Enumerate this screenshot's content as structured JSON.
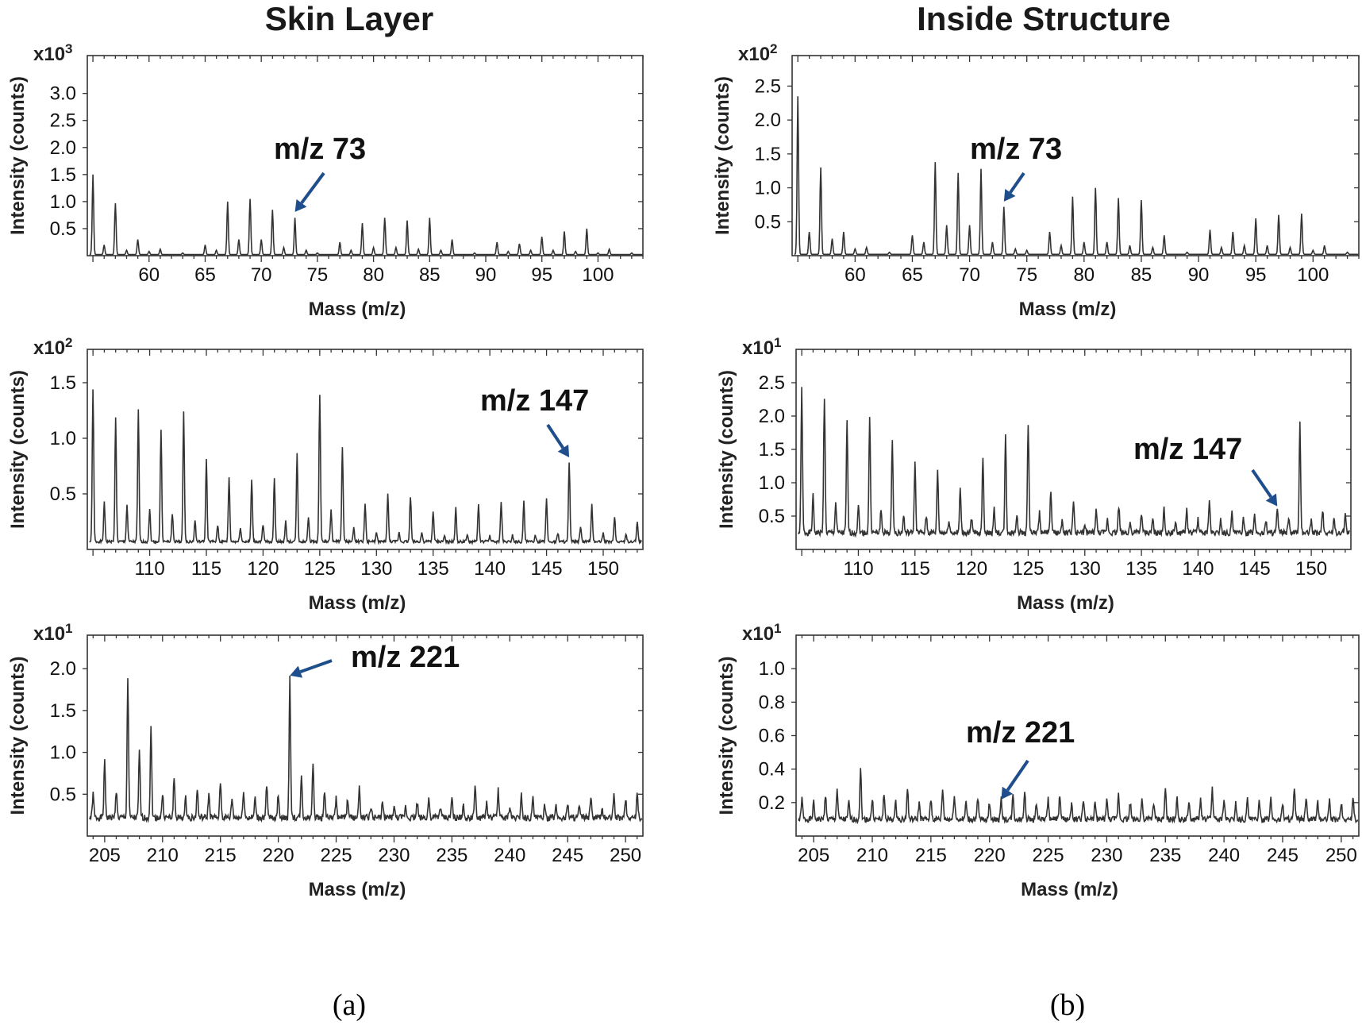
{
  "titles": {
    "left": "Skin Layer",
    "right": "Inside Structure"
  },
  "captions": {
    "left": "(a)",
    "right": "(b)"
  },
  "colors": {
    "arrow": "#1f4e8c",
    "line": "#333333"
  },
  "chart_data": [
    {
      "id": "a1",
      "type": "line",
      "column": "Skin Layer",
      "xlabel": "Mass (m/z)",
      "ylabel": "Intensity (counts)",
      "scale_base": "x10",
      "scale_exp": "3",
      "xlim": [
        54.5,
        104
      ],
      "ylim": [
        0,
        3.7
      ],
      "xticks": [
        60,
        65,
        70,
        75,
        80,
        85,
        90,
        95,
        100
      ],
      "yticks": [
        "0.5",
        "1.0",
        "1.5",
        "2.0",
        "2.5",
        "3.0"
      ],
      "baseline": 0.02,
      "annotation": {
        "text": "m/z 73",
        "x": 73,
        "y": 0.75
      },
      "peaks": [
        [
          55,
          1.5
        ],
        [
          56,
          0.2
        ],
        [
          57,
          0.97
        ],
        [
          58,
          0.1
        ],
        [
          59,
          0.3
        ],
        [
          60,
          0.08
        ],
        [
          61,
          0.12
        ],
        [
          63,
          0.05
        ],
        [
          65,
          0.2
        ],
        [
          66,
          0.1
        ],
        [
          67,
          1.0
        ],
        [
          68,
          0.3
        ],
        [
          69,
          1.05
        ],
        [
          70,
          0.3
        ],
        [
          71,
          0.85
        ],
        [
          72,
          0.15
        ],
        [
          73,
          0.7
        ],
        [
          74,
          0.1
        ],
        [
          75,
          0.05
        ],
        [
          77,
          0.25
        ],
        [
          78,
          0.1
        ],
        [
          79,
          0.6
        ],
        [
          80,
          0.15
        ],
        [
          81,
          0.7
        ],
        [
          82,
          0.15
        ],
        [
          83,
          0.65
        ],
        [
          84,
          0.12
        ],
        [
          85,
          0.7
        ],
        [
          86,
          0.1
        ],
        [
          87,
          0.3
        ],
        [
          89,
          0.05
        ],
        [
          91,
          0.25
        ],
        [
          92,
          0.08
        ],
        [
          93,
          0.22
        ],
        [
          94,
          0.1
        ],
        [
          95,
          0.35
        ],
        [
          96,
          0.1
        ],
        [
          97,
          0.45
        ],
        [
          98,
          0.08
        ],
        [
          99,
          0.5
        ],
        [
          100,
          0.05
        ],
        [
          101,
          0.12
        ],
        [
          103,
          0.05
        ]
      ]
    },
    {
      "id": "a2",
      "type": "line",
      "column": "Skin Layer",
      "xlabel": "Mass (m/z)",
      "ylabel": "Intensity (counts)",
      "scale_base": "x10",
      "scale_exp": "2",
      "xlim": [
        104.5,
        153.5
      ],
      "ylim": [
        0,
        1.8
      ],
      "xticks": [
        110,
        115,
        120,
        125,
        130,
        135,
        140,
        145,
        150
      ],
      "yticks": [
        "0.5",
        "1.0",
        "1.5"
      ],
      "baseline": 0.07,
      "annotation": {
        "text": "m/z 147",
        "x": 147,
        "y": 0.8
      },
      "peaks": [
        [
          105,
          1.43
        ],
        [
          106,
          0.42
        ],
        [
          107,
          1.2
        ],
        [
          108,
          0.4
        ],
        [
          109,
          1.25
        ],
        [
          110,
          0.36
        ],
        [
          111,
          1.08
        ],
        [
          112,
          0.32
        ],
        [
          113,
          1.23
        ],
        [
          114,
          0.26
        ],
        [
          115,
          0.81
        ],
        [
          116,
          0.22
        ],
        [
          117,
          0.65
        ],
        [
          118,
          0.2
        ],
        [
          119,
          0.62
        ],
        [
          120,
          0.22
        ],
        [
          121,
          0.65
        ],
        [
          122,
          0.25
        ],
        [
          123,
          0.86
        ],
        [
          124,
          0.3
        ],
        [
          125,
          1.4
        ],
        [
          126,
          0.35
        ],
        [
          127,
          0.93
        ],
        [
          128,
          0.2
        ],
        [
          129,
          0.42
        ],
        [
          130,
          0.15
        ],
        [
          131,
          0.5
        ],
        [
          132,
          0.15
        ],
        [
          133,
          0.48
        ],
        [
          134,
          0.15
        ],
        [
          135,
          0.35
        ],
        [
          136,
          0.12
        ],
        [
          137,
          0.37
        ],
        [
          138,
          0.13
        ],
        [
          139,
          0.4
        ],
        [
          140,
          0.12
        ],
        [
          141,
          0.43
        ],
        [
          142,
          0.13
        ],
        [
          143,
          0.43
        ],
        [
          144,
          0.12
        ],
        [
          145,
          0.45
        ],
        [
          146,
          0.15
        ],
        [
          147,
          0.78
        ],
        [
          148,
          0.2
        ],
        [
          149,
          0.4
        ],
        [
          150,
          0.15
        ],
        [
          151,
          0.3
        ],
        [
          152,
          0.13
        ],
        [
          153,
          0.25
        ]
      ]
    },
    {
      "id": "a3",
      "type": "line",
      "column": "Skin Layer",
      "xlabel": "Mass (m/z)",
      "ylabel": "Intensity (counts)",
      "scale_base": "x10",
      "scale_exp": "1",
      "xlim": [
        203.5,
        251.5
      ],
      "ylim": [
        0,
        2.4
      ],
      "xticks": [
        205,
        210,
        215,
        220,
        225,
        230,
        235,
        240,
        245,
        250
      ],
      "yticks": [
        "0.5",
        "1.0",
        "1.5",
        "2.0"
      ],
      "baseline": 0.22,
      "annotation": {
        "text": "m/z 221",
        "x": 221,
        "y": 1.88
      },
      "peaks": [
        [
          204,
          0.5
        ],
        [
          205,
          0.88
        ],
        [
          206,
          0.55
        ],
        [
          207,
          1.88
        ],
        [
          208,
          1.0
        ],
        [
          209,
          1.3
        ],
        [
          210,
          0.5
        ],
        [
          211,
          0.7
        ],
        [
          212,
          0.45
        ],
        [
          213,
          0.55
        ],
        [
          214,
          0.5
        ],
        [
          215,
          0.65
        ],
        [
          216,
          0.45
        ],
        [
          217,
          0.55
        ],
        [
          218,
          0.45
        ],
        [
          219,
          0.6
        ],
        [
          220,
          0.5
        ],
        [
          221,
          1.88
        ],
        [
          222,
          0.7
        ],
        [
          223,
          0.9
        ],
        [
          224,
          0.55
        ],
        [
          225,
          0.45
        ],
        [
          226,
          0.45
        ],
        [
          227,
          0.6
        ],
        [
          228,
          0.35
        ],
        [
          229,
          0.4
        ],
        [
          230,
          0.35
        ],
        [
          231,
          0.35
        ],
        [
          232,
          0.4
        ],
        [
          233,
          0.45
        ],
        [
          234,
          0.35
        ],
        [
          235,
          0.45
        ],
        [
          236,
          0.35
        ],
        [
          237,
          0.6
        ],
        [
          238,
          0.4
        ],
        [
          239,
          0.55
        ],
        [
          240,
          0.35
        ],
        [
          241,
          0.5
        ],
        [
          242,
          0.45
        ],
        [
          243,
          0.35
        ],
        [
          244,
          0.35
        ],
        [
          245,
          0.4
        ],
        [
          246,
          0.35
        ],
        [
          247,
          0.45
        ],
        [
          248,
          0.3
        ],
        [
          249,
          0.5
        ],
        [
          250,
          0.45
        ],
        [
          251,
          0.5
        ]
      ]
    },
    {
      "id": "b1",
      "type": "line",
      "column": "Inside Structure",
      "xlabel": "Mass (m/z)",
      "ylabel": "Intensity (counts)",
      "scale_base": "x10",
      "scale_exp": "2",
      "xlim": [
        54.5,
        104
      ],
      "ylim": [
        0,
        2.95
      ],
      "xticks": [
        60,
        65,
        70,
        75,
        80,
        85,
        90,
        95,
        100
      ],
      "yticks": [
        "0.5",
        "1.0",
        "1.5",
        "2.0",
        "2.5"
      ],
      "baseline": 0.02,
      "annotation": {
        "text": "m/z 73",
        "x": 73,
        "y": 0.75
      },
      "peaks": [
        [
          55,
          2.35
        ],
        [
          56,
          0.35
        ],
        [
          57,
          1.3
        ],
        [
          58,
          0.25
        ],
        [
          59,
          0.35
        ],
        [
          60,
          0.1
        ],
        [
          61,
          0.12
        ],
        [
          63,
          0.05
        ],
        [
          65,
          0.3
        ],
        [
          66,
          0.2
        ],
        [
          67,
          1.38
        ],
        [
          68,
          0.45
        ],
        [
          69,
          1.22
        ],
        [
          70,
          0.45
        ],
        [
          71,
          1.28
        ],
        [
          72,
          0.2
        ],
        [
          73,
          0.72
        ],
        [
          74,
          0.1
        ],
        [
          75,
          0.08
        ],
        [
          77,
          0.35
        ],
        [
          78,
          0.15
        ],
        [
          79,
          0.87
        ],
        [
          80,
          0.2
        ],
        [
          81,
          1.0
        ],
        [
          82,
          0.2
        ],
        [
          83,
          0.85
        ],
        [
          84,
          0.15
        ],
        [
          85,
          0.82
        ],
        [
          86,
          0.12
        ],
        [
          87,
          0.3
        ],
        [
          89,
          0.05
        ],
        [
          91,
          0.38
        ],
        [
          92,
          0.12
        ],
        [
          93,
          0.35
        ],
        [
          94,
          0.15
        ],
        [
          95,
          0.55
        ],
        [
          96,
          0.15
        ],
        [
          97,
          0.6
        ],
        [
          98,
          0.12
        ],
        [
          99,
          0.62
        ],
        [
          100,
          0.08
        ],
        [
          101,
          0.15
        ],
        [
          103,
          0.05
        ]
      ]
    },
    {
      "id": "b2",
      "type": "line",
      "column": "Inside Structure",
      "xlabel": "Mass (m/z)",
      "ylabel": "Intensity (counts)",
      "scale_base": "x10",
      "scale_exp": "1",
      "xlim": [
        104.5,
        153.5
      ],
      "ylim": [
        0,
        3.0
      ],
      "xticks": [
        110,
        115,
        120,
        125,
        130,
        135,
        140,
        145,
        150
      ],
      "yticks": [
        "0.5",
        "1.0",
        "1.5",
        "2.0",
        "2.5"
      ],
      "baseline": 0.25,
      "annotation": {
        "text": "m/z 147",
        "x": 147,
        "y": 0.6
      },
      "peaks": [
        [
          105,
          2.4
        ],
        [
          106,
          0.8
        ],
        [
          107,
          2.3
        ],
        [
          108,
          0.7
        ],
        [
          109,
          1.9
        ],
        [
          110,
          0.65
        ],
        [
          111,
          2.0
        ],
        [
          112,
          0.6
        ],
        [
          113,
          1.6
        ],
        [
          114,
          0.5
        ],
        [
          115,
          1.3
        ],
        [
          116,
          0.5
        ],
        [
          117,
          1.2
        ],
        [
          118,
          0.45
        ],
        [
          119,
          0.9
        ],
        [
          120,
          0.45
        ],
        [
          121,
          1.4
        ],
        [
          122,
          0.6
        ],
        [
          123,
          1.7
        ],
        [
          124,
          0.55
        ],
        [
          125,
          1.9
        ],
        [
          126,
          0.55
        ],
        [
          127,
          0.9
        ],
        [
          128,
          0.45
        ],
        [
          129,
          0.75
        ],
        [
          130,
          0.35
        ],
        [
          131,
          0.6
        ],
        [
          132,
          0.45
        ],
        [
          133,
          0.65
        ],
        [
          134,
          0.4
        ],
        [
          135,
          0.55
        ],
        [
          136,
          0.45
        ],
        [
          137,
          0.6
        ],
        [
          138,
          0.4
        ],
        [
          139,
          0.6
        ],
        [
          140,
          0.45
        ],
        [
          141,
          0.75
        ],
        [
          142,
          0.45
        ],
        [
          143,
          0.55
        ],
        [
          144,
          0.45
        ],
        [
          145,
          0.5
        ],
        [
          146,
          0.45
        ],
        [
          147,
          0.6
        ],
        [
          148,
          0.45
        ],
        [
          149,
          1.88
        ],
        [
          150,
          0.45
        ],
        [
          151,
          0.6
        ],
        [
          152,
          0.45
        ],
        [
          153,
          0.55
        ]
      ]
    },
    {
      "id": "b3",
      "type": "line",
      "column": "Inside Structure",
      "xlabel": "Mass (m/z)",
      "ylabel": "Intensity (counts)",
      "scale_base": "x10",
      "scale_exp": "1",
      "xlim": [
        203.5,
        251.5
      ],
      "ylim": [
        0,
        1.2
      ],
      "xticks": [
        205,
        210,
        215,
        220,
        225,
        230,
        235,
        240,
        245,
        250
      ],
      "yticks": [
        "0.2",
        "0.4",
        "0.6",
        "0.8",
        "1.0"
      ],
      "baseline": 0.1,
      "annotation": {
        "text": "m/z 221",
        "x": 221,
        "y": 0.2
      },
      "peaks": [
        [
          204,
          0.22
        ],
        [
          205,
          0.2
        ],
        [
          206,
          0.25
        ],
        [
          207,
          0.28
        ],
        [
          208,
          0.2
        ],
        [
          209,
          0.4
        ],
        [
          210,
          0.22
        ],
        [
          211,
          0.25
        ],
        [
          212,
          0.2
        ],
        [
          213,
          0.28
        ],
        [
          214,
          0.2
        ],
        [
          215,
          0.22
        ],
        [
          216,
          0.28
        ],
        [
          217,
          0.25
        ],
        [
          218,
          0.2
        ],
        [
          219,
          0.22
        ],
        [
          220,
          0.2
        ],
        [
          221,
          0.22
        ],
        [
          222,
          0.24
        ],
        [
          223,
          0.28
        ],
        [
          224,
          0.2
        ],
        [
          225,
          0.22
        ],
        [
          226,
          0.25
        ],
        [
          227,
          0.2
        ],
        [
          228,
          0.22
        ],
        [
          229,
          0.2
        ],
        [
          230,
          0.22
        ],
        [
          231,
          0.25
        ],
        [
          232,
          0.2
        ],
        [
          233,
          0.22
        ],
        [
          234,
          0.2
        ],
        [
          235,
          0.28
        ],
        [
          236,
          0.22
        ],
        [
          237,
          0.2
        ],
        [
          238,
          0.22
        ],
        [
          239,
          0.28
        ],
        [
          240,
          0.22
        ],
        [
          241,
          0.2
        ],
        [
          242,
          0.22
        ],
        [
          243,
          0.2
        ],
        [
          244,
          0.22
        ],
        [
          245,
          0.2
        ],
        [
          246,
          0.28
        ],
        [
          247,
          0.22
        ],
        [
          248,
          0.2
        ],
        [
          249,
          0.22
        ],
        [
          250,
          0.2
        ],
        [
          251,
          0.22
        ]
      ]
    }
  ]
}
